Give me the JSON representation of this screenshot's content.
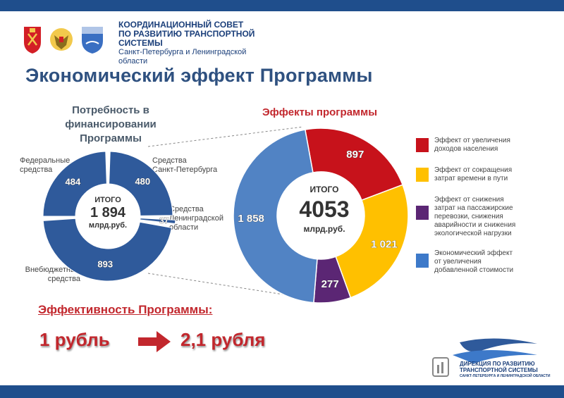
{
  "header": {
    "council_line1": "КООРДИНАЦИОННЫЙ СОВЕТ",
    "council_line2": "ПО РАЗВИТИЮ ТРАНСПОРТНОЙ СИСТЕМЫ",
    "council_line3": "Санкт-Петербурга и Ленинградской области"
  },
  "page_title": "Экономический эффект Программы",
  "colors": {
    "blue": "#2f5a9b",
    "light_blue": "#5183c4",
    "red": "#c7121b",
    "yellow": "#ffc000",
    "purple": "#5b2674",
    "accent_red": "#c2272d"
  },
  "chart_data": [
    {
      "type": "pie",
      "variant": "donut",
      "title": "Потребность в финансировании Программы",
      "categories": [
        "Средства Санкт-Петербурга",
        "Средства Ленинградской области",
        "Внебюджетные средства",
        "Федеральные средства"
      ],
      "category_lines": [
        [
          "Средства",
          "Санкт-Петербурга"
        ],
        [
          "Средства",
          "Ленинградской",
          "области"
        ],
        [
          "Внебюджетные",
          "средства"
        ],
        [
          "Федеральные",
          "средства"
        ]
      ],
      "values": [
        480,
        37,
        893,
        484
      ],
      "value_labels": [
        "480",
        "37",
        "893",
        "484"
      ],
      "center_label": "ИТОГО",
      "center_value": "1 894",
      "center_unit": "млрд.руб."
    },
    {
      "type": "pie",
      "variant": "donut",
      "title": "Эффекты программы",
      "series": [
        {
          "name": "Эффект от увеличения доходов населения",
          "name_lines": [
            "Эффект от увеличения",
            "доходов населения"
          ],
          "value": 897,
          "label": "897"
        },
        {
          "name": "Эффект от сокращения затрат времени в пути",
          "name_lines": [
            "Эффект от сокращения",
            "затрат времени в пути"
          ],
          "value": 1021,
          "label": "1 021"
        },
        {
          "name": "Эффект от снижения затрат на пассажирские перевозки, снижения аварийности и снижения экологической нагрузки",
          "name_lines": [
            "Эффект от снижения",
            "затрат на пассажирские",
            "перевозки, снижения",
            "аварийности и снижения",
            "экологической нагрузки"
          ],
          "value": 277,
          "label": "277"
        },
        {
          "name": "Экономический эффект от увеличения добавленной стоимости",
          "name_lines": [
            "Экономический эффект",
            "от увеличения",
            "добавленной стоимости"
          ],
          "value": 1858,
          "label": "1 858"
        }
      ],
      "center_label": "ИТОГО",
      "center_value": "4053",
      "center_unit": "млрд.руб."
    }
  ],
  "efficiency": {
    "title": "Эффективность Программы:",
    "from": "1 рубль",
    "to": "2,1 рубля"
  },
  "footer_logo": {
    "line1": "ДИРЕКЦИЯ ПО РАЗВИТИЮ",
    "line2": "ТРАНСПОРТНОЙ СИСТЕМЫ",
    "line3": "САНКТ-ПЕТЕРБУРГА И ЛЕНИНГРАДСКОЙ ОБЛАСТИ"
  }
}
